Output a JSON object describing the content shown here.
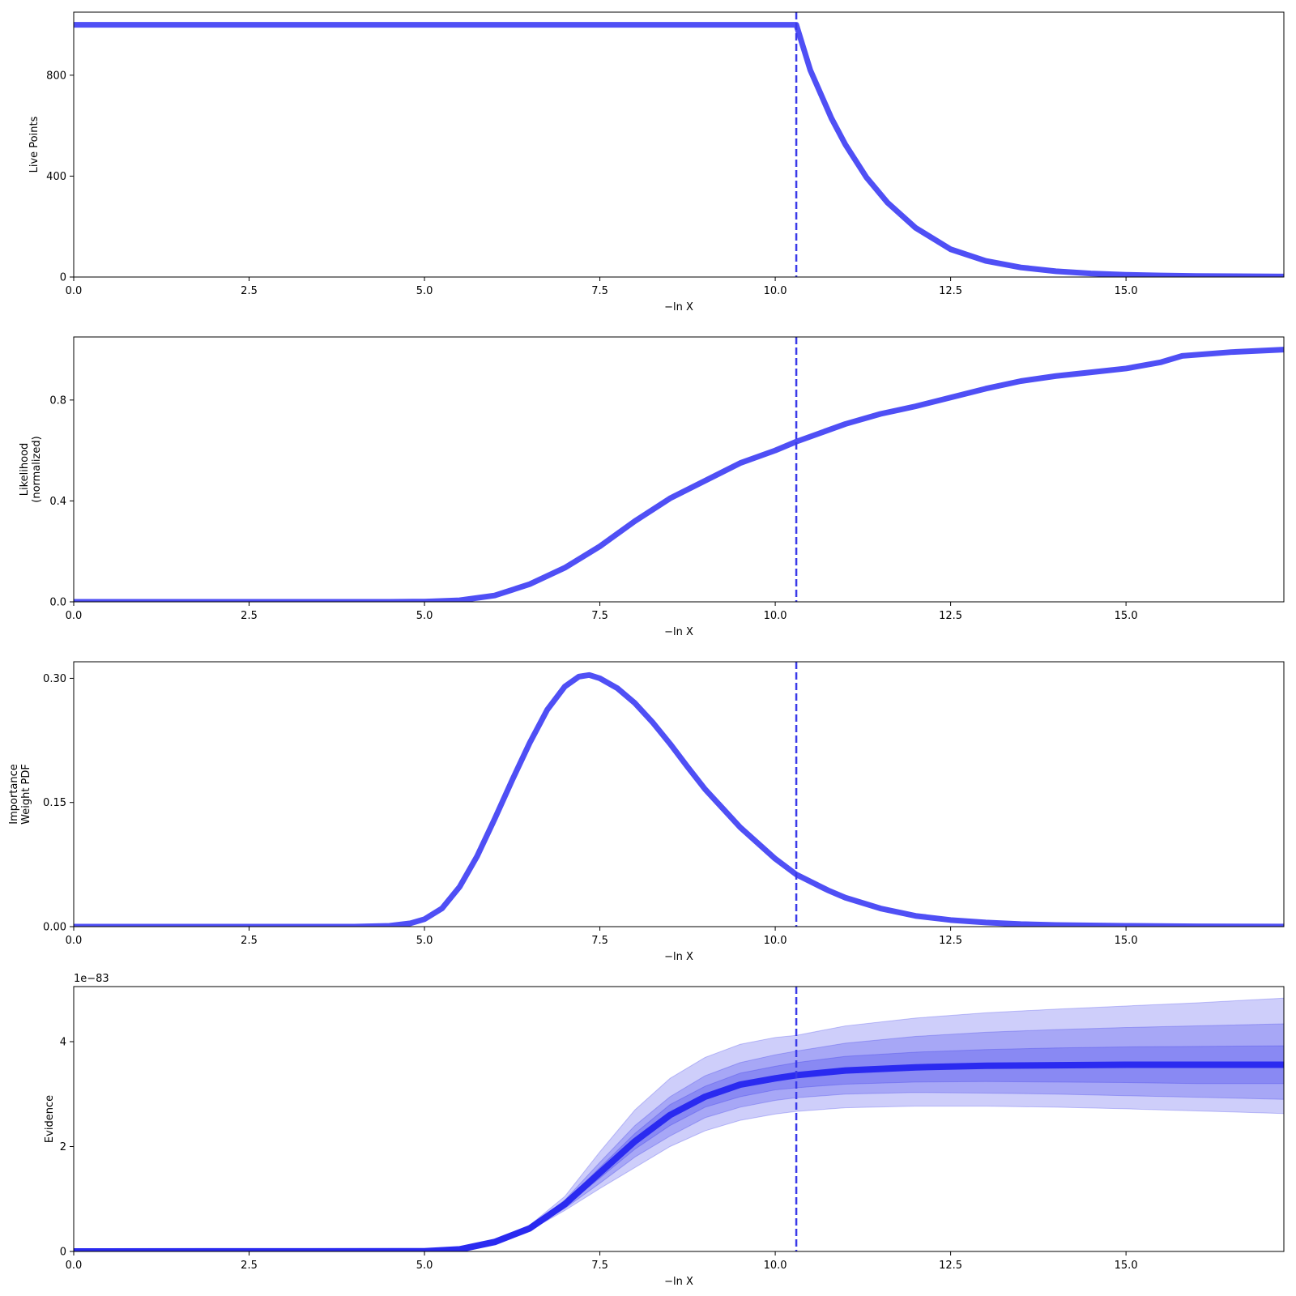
{
  "figure": {
    "colors": {
      "line": "#4f4ff5",
      "evidence_line": "#2a2af0",
      "band": "#2222e6",
      "vline": "#3a3ae8",
      "axis": "#000000"
    }
  },
  "chart_data": [
    {
      "id": "live-points",
      "type": "line",
      "ylabel_lines": [
        "Live Points"
      ],
      "xlabel": "−ln X",
      "xlim": [
        0,
        17.25
      ],
      "ylim": [
        0,
        1050
      ],
      "xticks": [
        {
          "value": 0,
          "label": "0.0"
        },
        {
          "value": 2.5,
          "label": "2.5"
        },
        {
          "value": 5,
          "label": "5.0"
        },
        {
          "value": 7.5,
          "label": "7.5"
        },
        {
          "value": 10,
          "label": "10.0"
        },
        {
          "value": 12.5,
          "label": "12.5"
        },
        {
          "value": 15,
          "label": "15.0"
        }
      ],
      "yticks": [
        {
          "value": 0,
          "label": "0"
        },
        {
          "value": 400,
          "label": "400"
        },
        {
          "value": 800,
          "label": "800"
        }
      ],
      "vline": 10.3,
      "series": [
        {
          "x": [
            0,
            10.3,
            10.5,
            10.8,
            11.0,
            11.3,
            11.6,
            12.0,
            12.5,
            13.0,
            13.5,
            14.0,
            14.5,
            15.0,
            15.5,
            16.0,
            17.25
          ],
          "y": [
            1000,
            1000,
            820,
            630,
            525,
            395,
            295,
            195,
            110,
            64,
            38,
            23,
            14,
            9,
            6,
            4,
            2
          ]
        }
      ]
    },
    {
      "id": "likelihood",
      "type": "line",
      "ylabel_lines": [
        "Likelihood",
        "(normalized)"
      ],
      "xlabel": "−ln X",
      "xlim": [
        0,
        17.25
      ],
      "ylim": [
        0,
        1.05
      ],
      "xticks": [
        {
          "value": 0,
          "label": "0.0"
        },
        {
          "value": 2.5,
          "label": "2.5"
        },
        {
          "value": 5,
          "label": "5.0"
        },
        {
          "value": 7.5,
          "label": "7.5"
        },
        {
          "value": 10,
          "label": "10.0"
        },
        {
          "value": 12.5,
          "label": "12.5"
        },
        {
          "value": 15,
          "label": "15.0"
        }
      ],
      "yticks": [
        {
          "value": 0,
          "label": "0.0"
        },
        {
          "value": 0.4,
          "label": "0.4"
        },
        {
          "value": 0.8,
          "label": "0.8"
        }
      ],
      "vline": 10.3,
      "series": [
        {
          "x": [
            0,
            4.5,
            5.0,
            5.5,
            6.0,
            6.5,
            7.0,
            7.5,
            8.0,
            8.5,
            9.0,
            9.5,
            10.0,
            10.3,
            11.0,
            11.5,
            12.0,
            12.5,
            13.0,
            13.5,
            14.0,
            14.5,
            15.0,
            15.5,
            15.8,
            16.5,
            17.25
          ],
          "y": [
            0.0,
            0.0,
            0.001,
            0.006,
            0.025,
            0.07,
            0.135,
            0.22,
            0.32,
            0.41,
            0.48,
            0.55,
            0.6,
            0.635,
            0.705,
            0.745,
            0.775,
            0.81,
            0.845,
            0.875,
            0.895,
            0.91,
            0.925,
            0.95,
            0.975,
            0.99,
            1.0
          ]
        }
      ]
    },
    {
      "id": "importance-weight",
      "type": "line",
      "ylabel_lines": [
        "Importance",
        "Weight PDF"
      ],
      "xlabel": "−ln X",
      "xlim": [
        0,
        17.25
      ],
      "ylim": [
        0,
        0.32
      ],
      "xticks": [
        {
          "value": 0,
          "label": "0.0"
        },
        {
          "value": 2.5,
          "label": "2.5"
        },
        {
          "value": 5,
          "label": "5.0"
        },
        {
          "value": 7.5,
          "label": "7.5"
        },
        {
          "value": 10,
          "label": "10.0"
        },
        {
          "value": 12.5,
          "label": "12.5"
        },
        {
          "value": 15,
          "label": "15.0"
        }
      ],
      "yticks": [
        {
          "value": 0,
          "label": "0.00"
        },
        {
          "value": 0.15,
          "label": "0.15"
        },
        {
          "value": 0.3,
          "label": "0.30"
        }
      ],
      "vline": 10.3,
      "series": [
        {
          "x": [
            0,
            4.0,
            4.5,
            4.8,
            5.0,
            5.25,
            5.5,
            5.75,
            6.0,
            6.25,
            6.5,
            6.75,
            7.0,
            7.2,
            7.35,
            7.5,
            7.75,
            8.0,
            8.25,
            8.5,
            8.75,
            9.0,
            9.5,
            10.0,
            10.3,
            10.75,
            11.0,
            11.5,
            12.0,
            12.5,
            13.0,
            13.5,
            14.0,
            15.0,
            16.0,
            17.25
          ],
          "y": [
            0.0,
            0.0,
            0.001,
            0.004,
            0.009,
            0.022,
            0.048,
            0.085,
            0.13,
            0.177,
            0.222,
            0.262,
            0.29,
            0.302,
            0.304,
            0.3,
            0.288,
            0.27,
            0.247,
            0.221,
            0.193,
            0.166,
            0.12,
            0.082,
            0.063,
            0.044,
            0.035,
            0.022,
            0.013,
            0.008,
            0.005,
            0.003,
            0.002,
            0.001,
            0.0004,
            0.0001
          ]
        }
      ]
    },
    {
      "id": "evidence",
      "type": "area",
      "ylabel_lines": [
        "Evidence"
      ],
      "xlabel": "−ln X",
      "offset_text": "1e−83",
      "xlim": [
        0,
        17.25
      ],
      "ylim": [
        0,
        5.05
      ],
      "xticks": [
        {
          "value": 0,
          "label": "0.0"
        },
        {
          "value": 2.5,
          "label": "2.5"
        },
        {
          "value": 5,
          "label": "5.0"
        },
        {
          "value": 7.5,
          "label": "7.5"
        },
        {
          "value": 10,
          "label": "10.0"
        },
        {
          "value": 12.5,
          "label": "12.5"
        },
        {
          "value": 15,
          "label": "15.0"
        }
      ],
      "yticks": [
        {
          "value": 0,
          "label": "0"
        },
        {
          "value": 2,
          "label": "2"
        },
        {
          "value": 4,
          "label": "4"
        }
      ],
      "vline": 10.3,
      "x": [
        0,
        5.0,
        5.5,
        6.0,
        6.5,
        7.0,
        7.5,
        8.0,
        8.5,
        9.0,
        9.5,
        10.0,
        10.3,
        11.0,
        12.0,
        13.0,
        14.0,
        15.0,
        16.0,
        17.25
      ],
      "median": [
        0.0,
        0.004,
        0.04,
        0.18,
        0.44,
        0.9,
        1.5,
        2.1,
        2.6,
        2.95,
        3.18,
        3.3,
        3.36,
        3.45,
        3.51,
        3.54,
        3.55,
        3.56,
        3.56,
        3.56
      ],
      "bands": [
        {
          "lower": [
            0.0,
            0.004,
            0.038,
            0.17,
            0.4,
            0.78,
            1.2,
            1.6,
            2.0,
            2.3,
            2.5,
            2.62,
            2.67,
            2.74,
            2.77,
            2.77,
            2.75,
            2.72,
            2.68,
            2.63
          ],
          "upper": [
            0.0,
            0.004,
            0.043,
            0.2,
            0.5,
            1.05,
            1.9,
            2.7,
            3.3,
            3.7,
            3.95,
            4.08,
            4.12,
            4.3,
            4.45,
            4.55,
            4.62,
            4.68,
            4.74,
            4.83
          ]
        },
        {
          "lower": [
            0.0,
            0.004,
            0.039,
            0.175,
            0.415,
            0.82,
            1.3,
            1.8,
            2.2,
            2.55,
            2.75,
            2.88,
            2.93,
            3.0,
            3.03,
            3.02,
            3.0,
            2.97,
            2.94,
            2.9
          ],
          "upper": [
            0.0,
            0.004,
            0.042,
            0.19,
            0.47,
            0.98,
            1.7,
            2.4,
            2.95,
            3.35,
            3.6,
            3.75,
            3.82,
            3.97,
            4.1,
            4.18,
            4.23,
            4.27,
            4.3,
            4.34
          ]
        },
        {
          "lower": [
            0.0,
            0.004,
            0.04,
            0.178,
            0.43,
            0.86,
            1.4,
            1.95,
            2.4,
            2.75,
            2.95,
            3.08,
            3.12,
            3.19,
            3.23,
            3.24,
            3.23,
            3.22,
            3.2,
            3.2
          ],
          "upper": [
            0.0,
            0.004,
            0.041,
            0.185,
            0.455,
            0.94,
            1.6,
            2.25,
            2.8,
            3.15,
            3.4,
            3.53,
            3.6,
            3.72,
            3.8,
            3.85,
            3.88,
            3.9,
            3.91,
            3.92
          ]
        }
      ]
    }
  ]
}
